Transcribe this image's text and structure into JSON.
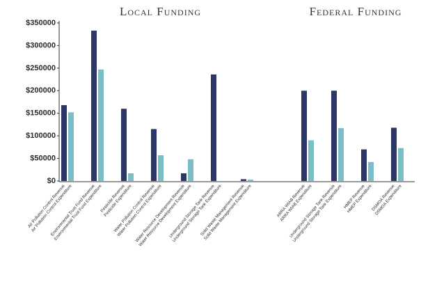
{
  "chart_data": {
    "type": "bar",
    "ylim": [
      0,
      350000
    ],
    "yticks": [
      {
        "value": 0,
        "label": "$0"
      },
      {
        "value": 50000,
        "label": "$50000"
      },
      {
        "value": 100000,
        "label": "$100000"
      },
      {
        "value": 150000,
        "label": "$150000"
      },
      {
        "value": 200000,
        "label": "$200000"
      },
      {
        "value": 250000,
        "label": "$250000"
      },
      {
        "value": 300000,
        "label": "$300000"
      },
      {
        "value": 350000,
        "label": "$350000"
      }
    ],
    "grid": false,
    "colors": [
      "#2c3768",
      "#7cbec8"
    ],
    "panels": [
      {
        "title": "Local Funding",
        "categories": [
          "Air Pollution Control Revenue",
          "Air Pollution Control Expenditure",
          "Environmental Trust Fund Revenue",
          "Environmental Trust Fund Expenditure",
          "Pesticide Revenue",
          "Pesticide Expenditure",
          "Water Pollution Control Revenue",
          "Water Pollution Control Expenditure",
          "Water Resource Development Revenue",
          "Water Resource Development Expenditure",
          "Underground Storage Tank Revenue",
          "Underground Storage Tank Expenditure",
          "Solid Waste Management Revenue",
          "Solid Waste Management Expenditure"
        ],
        "values": [
          168000,
          152000,
          333000,
          247000,
          160000,
          17000,
          115000,
          57000,
          17000,
          48000,
          236000,
          0,
          4000,
          3000
        ]
      },
      {
        "title": "Federal Funding",
        "categories": [
          "ARRA WIAB Revenue",
          "ARRA WIAB Expenditure",
          "Underground Storage Tank Revenue",
          "Underground Storage Tank Expenditure",
          "HMEP Revenue",
          "HMEP Expenditure",
          "DSMOA Revenue",
          "DSMOA Expenditure"
        ],
        "values": [
          200000,
          90000,
          200000,
          117000,
          70000,
          42000,
          118000,
          73000
        ]
      }
    ]
  }
}
